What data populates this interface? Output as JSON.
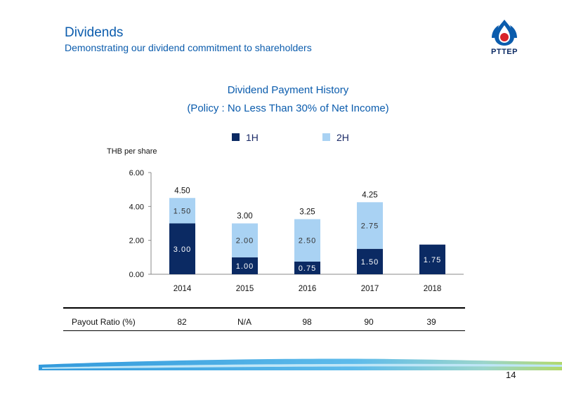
{
  "header": {
    "title": "Dividends",
    "subtitle": "Demonstrating our dividend commitment to shareholders",
    "logo_text": "PTTEP"
  },
  "chart_data": {
    "type": "bar",
    "stacked": true,
    "title": "Dividend Payment History",
    "subtitle": "(Policy : No Less Than 30% of Net Income)",
    "ylabel": "THB per share",
    "xlabel": "",
    "ylim": [
      0,
      6
    ],
    "yticks": [
      "0.00",
      "2.00",
      "4.00",
      "6.00"
    ],
    "categories": [
      "2014",
      "2015",
      "2016",
      "2017",
      "2018"
    ],
    "series": [
      {
        "name": "1H",
        "color": "#0b2a63",
        "values": [
          3.0,
          1.0,
          0.75,
          1.5,
          1.75
        ],
        "labels": [
          "3.00",
          "1.00",
          "0.75",
          "1.50",
          "1.75"
        ]
      },
      {
        "name": "2H",
        "color": "#a9d2f3",
        "values": [
          1.5,
          2.0,
          2.5,
          2.75,
          null
        ],
        "labels": [
          "1.50",
          "2.00",
          "2.50",
          "2.75",
          ""
        ]
      }
    ],
    "totals": [
      "4.50",
      "3.00",
      "3.25",
      "4.25",
      ""
    ],
    "legend_position": "top",
    "grid": false
  },
  "payout": {
    "label": "Payout Ratio (%)",
    "values": [
      "82",
      "N/A",
      "98",
      "90",
      "39"
    ]
  },
  "page_number": "14"
}
